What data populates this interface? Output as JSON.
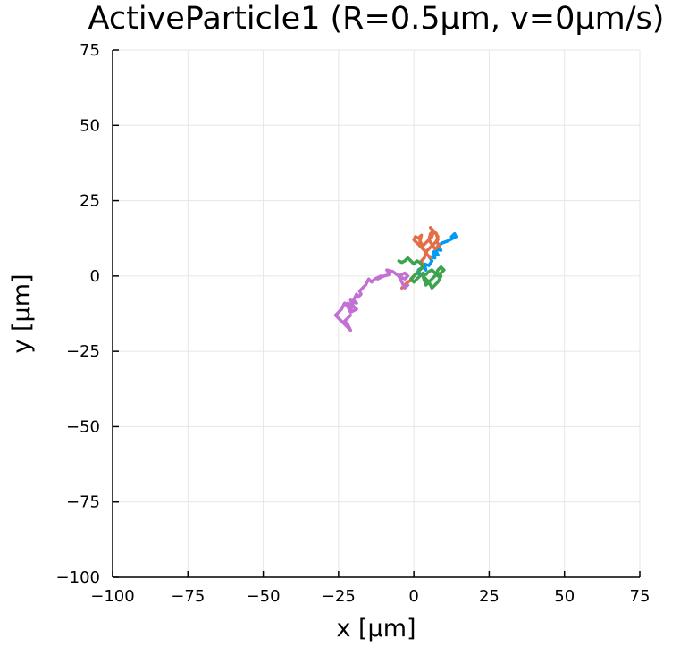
{
  "chart_data": {
    "type": "line",
    "title": "ActiveParticle1 (R=0.5μm, v=0μm/s)",
    "xlabel": "x [μm]",
    "ylabel": "y [μm]",
    "xlim": [
      -100,
      75
    ],
    "ylim": [
      -100,
      75
    ],
    "xticks": [
      -100,
      -75,
      -50,
      -25,
      0,
      25,
      50,
      75
    ],
    "yticks": [
      -100,
      -75,
      -50,
      -25,
      0,
      25,
      50,
      75
    ],
    "xtick_labels": [
      "−100",
      "−75",
      "−50",
      "−25",
      "0",
      "25",
      "50",
      "75"
    ],
    "ytick_labels": [
      "−100",
      "−75",
      "−50",
      "−25",
      "0",
      "25",
      "50",
      "75"
    ],
    "grid": true,
    "legend": "none",
    "series": [
      {
        "color": "#009af9",
        "x": [
          0,
          1,
          2,
          1.5,
          3,
          4,
          3.5,
          5,
          6,
          5,
          7,
          6.5,
          8,
          7,
          9,
          8,
          9.5,
          11,
          12,
          13,
          14,
          13.5,
          12.5
        ],
        "y": [
          0,
          1,
          0.5,
          2,
          3,
          2,
          4,
          3.5,
          5,
          6.5,
          6,
          8,
          7,
          9,
          8.5,
          10,
          11,
          11.5,
          12,
          12.5,
          13,
          14,
          13
        ]
      },
      {
        "color": "#e26f46",
        "x": [
          -4,
          -3,
          -2,
          -1,
          0,
          1,
          2,
          3,
          2.5,
          3.5,
          4,
          3,
          2,
          1,
          0,
          0.5,
          1.5,
          2.5,
          2,
          3,
          4,
          5,
          6,
          6.5,
          5.5,
          7,
          8,
          7.5,
          8.5,
          7,
          6,
          5,
          5.5,
          6.5,
          7.5,
          8,
          7,
          6,
          5,
          4,
          4.5,
          5.5
        ],
        "y": [
          -4,
          -3,
          -2,
          -1.5,
          0,
          1,
          2,
          3,
          5,
          6,
          8,
          9,
          10,
          11,
          12,
          13,
          12.5,
          13.5,
          11.5,
          10,
          11,
          12,
          13,
          15,
          16,
          14.5,
          13,
          11.5,
          10,
          9,
          10.5,
          12,
          14,
          15,
          14,
          12,
          11,
          10,
          9,
          8,
          7,
          6
        ]
      },
      {
        "color": "#3da44d",
        "x": [
          -5,
          -4,
          -3,
          -2,
          -1,
          0,
          1,
          2,
          3,
          2,
          1,
          0,
          -1,
          0,
          1,
          2,
          3,
          4,
          5,
          6,
          7,
          8,
          9,
          10,
          9,
          8,
          7,
          6,
          5,
          4,
          3,
          4,
          5,
          6,
          7,
          8,
          9,
          8
        ],
        "y": [
          5,
          4.5,
          5,
          6,
          5,
          4,
          5,
          4.5,
          3,
          2,
          1,
          0,
          -1,
          -2,
          -1,
          0,
          1,
          0.5,
          1.5,
          2,
          1,
          0,
          1,
          2,
          3,
          2,
          0,
          -1,
          -2,
          -1,
          0,
          -3,
          -2,
          -4,
          -3,
          -2,
          0,
          1
        ]
      },
      {
        "color": "#c271d2",
        "x": [
          -2,
          -3,
          -4,
          -5,
          -3,
          -2,
          -3,
          -5,
          -7,
          -9,
          -8,
          -10,
          -12,
          -11,
          -13,
          -14,
          -15,
          -16,
          -17,
          -18,
          -17.5,
          -18.5,
          -19,
          -20,
          -19,
          -21,
          -20,
          -22,
          -21,
          -20,
          -19,
          -21,
          -22,
          -23,
          -24,
          -25,
          -26,
          -25,
          -24,
          -23,
          -22,
          -21,
          -22,
          -23,
          -22,
          -21
        ],
        "y": [
          -3,
          -4,
          -2,
          0,
          1,
          0,
          -1,
          0,
          1.5,
          2,
          0.5,
          0,
          -1,
          0,
          -1,
          -2,
          -1,
          -3,
          -4,
          -5,
          -6,
          -7,
          -6,
          -8,
          -9,
          -8,
          -10,
          -9,
          -11,
          -10,
          -11,
          -12,
          -10,
          -9,
          -11,
          -12,
          -13,
          -14,
          -15,
          -16,
          -17,
          -18,
          -16,
          -15,
          -14,
          -13
        ]
      }
    ]
  }
}
